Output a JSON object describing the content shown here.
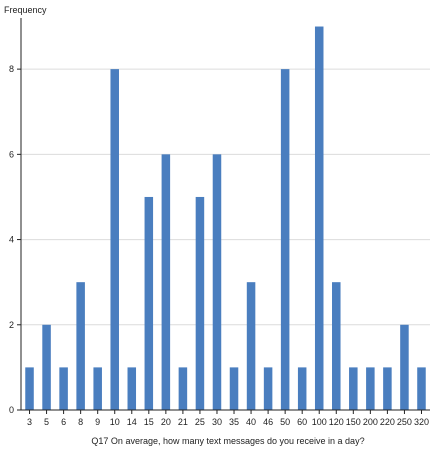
{
  "chart_data": {
    "type": "bar",
    "ylabel": "Frequency",
    "xlabel": "Q17 On average, how many text messages do you receive in a day?",
    "categories": [
      "3",
      "5",
      "6",
      "8",
      "9",
      "10",
      "14",
      "15",
      "20",
      "21",
      "25",
      "30",
      "35",
      "40",
      "46",
      "50",
      "60",
      "100",
      "120",
      "150",
      "200",
      "220",
      "250",
      "320"
    ],
    "values": [
      1,
      2,
      1,
      3,
      1,
      8,
      1,
      5,
      6,
      1,
      5,
      6,
      1,
      3,
      1,
      8,
      1,
      9,
      3,
      1,
      1,
      1,
      2,
      1
    ],
    "ylim": [
      0,
      9.2
    ],
    "yticks": [
      0,
      2,
      4,
      6,
      8
    ],
    "grid": true,
    "bar_color": "#4a7ebf"
  }
}
